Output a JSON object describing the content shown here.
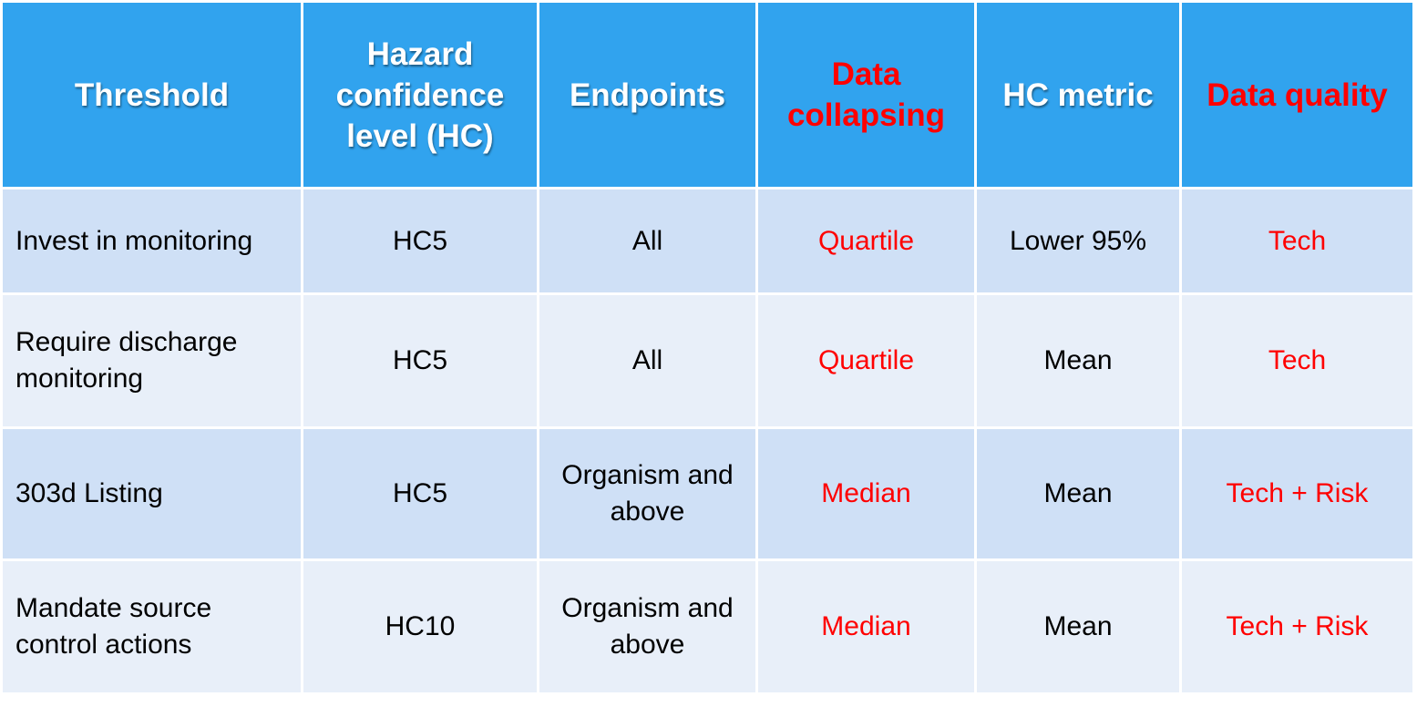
{
  "table": {
    "headers": [
      "Threshold",
      "Hazard confidence level (HC)",
      "Endpoints",
      "Data collapsing",
      "HC metric",
      "Data quality"
    ],
    "rows": [
      [
        "Invest in monitoring",
        "HC5",
        "All",
        "Quartile",
        "Lower 95%",
        "Tech"
      ],
      [
        "Require discharge monitoring",
        "HC5",
        "All",
        "Quartile",
        "Mean",
        "Tech"
      ],
      [
        "303d Listing",
        "HC5",
        "Organism and above",
        "Median",
        "Mean",
        "Tech + Risk"
      ],
      [
        "Mandate source control actions",
        "HC10",
        "Organism and above",
        "Median",
        "Mean",
        "Tech + Risk"
      ]
    ]
  },
  "colors": {
    "header_bg": "#31a3ee",
    "header_text": "#ffffff",
    "highlight_text": "#ff0000",
    "row_dark": "#cfe0f6",
    "row_light": "#e8eff9"
  }
}
